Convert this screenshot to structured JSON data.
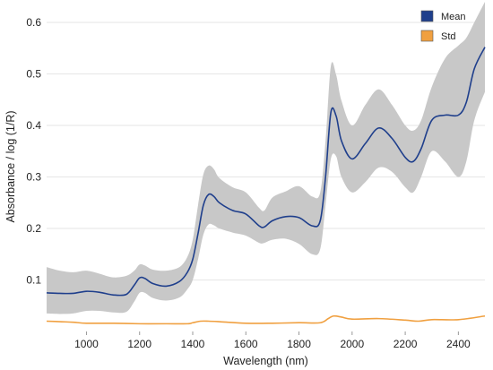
{
  "chart_data": {
    "type": "line",
    "xlabel": "Wavelength (nm)",
    "ylabel": "Absorbance / log (1/R)",
    "xlim": [
      850,
      2500
    ],
    "ylim": [
      0.0,
      0.64
    ],
    "x_ticks": [
      1000,
      1200,
      1400,
      1600,
      1800,
      2000,
      2200,
      2400
    ],
    "y_ticks": [
      0.1,
      0.2,
      0.3,
      0.4,
      0.5,
      0.6
    ],
    "x_tick_labels": [
      "1000",
      "1200",
      "1400",
      "1600",
      "1800",
      "2000",
      "2200",
      "2400"
    ],
    "y_tick_labels": [
      "0.1",
      "0.2",
      "0.3",
      "0.4",
      "0.5",
      "0.6"
    ],
    "grid": "horizontal",
    "legend_position": "top-right",
    "colors": {
      "mean": "#1f3f8c",
      "std": "#f0a040",
      "band": "#c8c8c8",
      "grid": "#e6e6e6"
    },
    "series": [
      {
        "name": "Mean",
        "x": [
          850,
          900,
          950,
          1000,
          1050,
          1100,
          1150,
          1180,
          1200,
          1220,
          1250,
          1300,
          1350,
          1380,
          1400,
          1420,
          1440,
          1460,
          1480,
          1500,
          1550,
          1600,
          1650,
          1670,
          1700,
          1750,
          1800,
          1850,
          1880,
          1900,
          1920,
          1940,
          1960,
          2000,
          2050,
          2100,
          2150,
          2200,
          2230,
          2260,
          2300,
          2350,
          2400,
          2430,
          2460,
          2500
        ],
        "values": [
          0.075,
          0.074,
          0.074,
          0.078,
          0.076,
          0.071,
          0.072,
          0.09,
          0.104,
          0.103,
          0.093,
          0.088,
          0.097,
          0.115,
          0.14,
          0.19,
          0.245,
          0.266,
          0.262,
          0.25,
          0.235,
          0.228,
          0.205,
          0.203,
          0.215,
          0.223,
          0.221,
          0.205,
          0.215,
          0.3,
          0.425,
          0.418,
          0.37,
          0.335,
          0.365,
          0.395,
          0.375,
          0.338,
          0.33,
          0.355,
          0.41,
          0.42,
          0.42,
          0.445,
          0.51,
          0.552
        ],
        "band_upper": [
          0.125,
          0.118,
          0.115,
          0.118,
          0.112,
          0.105,
          0.108,
          0.118,
          0.13,
          0.128,
          0.12,
          0.118,
          0.125,
          0.145,
          0.178,
          0.245,
          0.305,
          0.322,
          0.315,
          0.298,
          0.28,
          0.27,
          0.24,
          0.235,
          0.26,
          0.272,
          0.282,
          0.262,
          0.27,
          0.37,
          0.515,
          0.498,
          0.448,
          0.4,
          0.44,
          0.47,
          0.44,
          0.4,
          0.39,
          0.41,
          0.475,
          0.53,
          0.555,
          0.57,
          0.6,
          0.64
        ],
        "band_lower": [
          0.035,
          0.034,
          0.035,
          0.04,
          0.04,
          0.037,
          0.038,
          0.058,
          0.075,
          0.075,
          0.065,
          0.06,
          0.066,
          0.082,
          0.1,
          0.14,
          0.188,
          0.208,
          0.206,
          0.2,
          0.192,
          0.186,
          0.172,
          0.172,
          0.178,
          0.18,
          0.17,
          0.15,
          0.16,
          0.245,
          0.335,
          0.34,
          0.3,
          0.27,
          0.29,
          0.318,
          0.31,
          0.28,
          0.27,
          0.3,
          0.35,
          0.33,
          0.3,
          0.33,
          0.41,
          0.465
        ]
      },
      {
        "name": "Std",
        "x": [
          850,
          900,
          950,
          1000,
          1100,
          1200,
          1300,
          1380,
          1400,
          1430,
          1460,
          1500,
          1600,
          1700,
          1800,
          1880,
          1910,
          1930,
          1960,
          2000,
          2100,
          2200,
          2250,
          2300,
          2400,
          2500
        ],
        "values": [
          0.02,
          0.019,
          0.018,
          0.016,
          0.016,
          0.015,
          0.015,
          0.015,
          0.017,
          0.02,
          0.02,
          0.019,
          0.016,
          0.016,
          0.017,
          0.017,
          0.025,
          0.03,
          0.028,
          0.024,
          0.025,
          0.022,
          0.02,
          0.023,
          0.023,
          0.03
        ]
      }
    ]
  }
}
